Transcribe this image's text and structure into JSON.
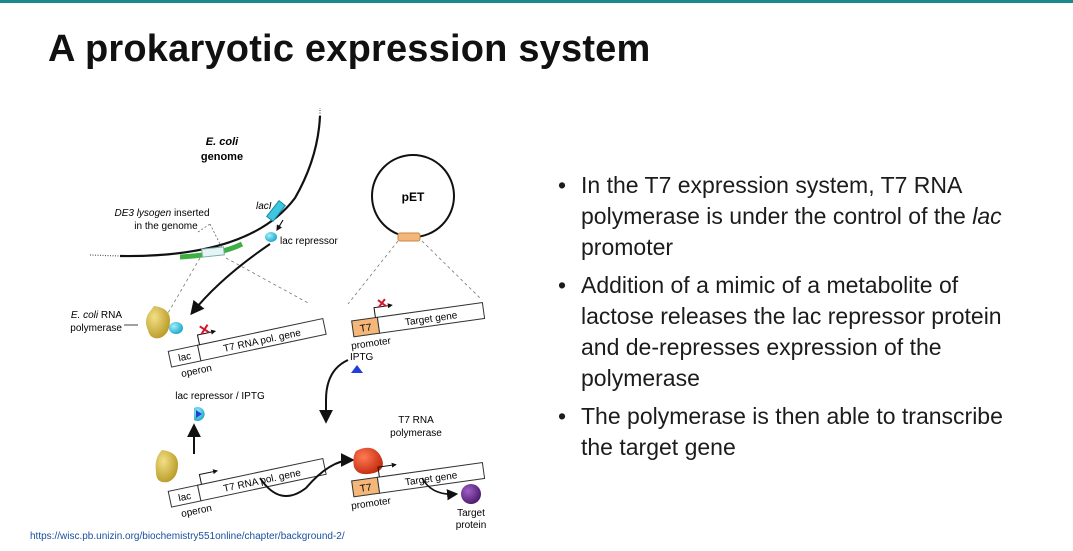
{
  "slide": {
    "title": "A prokaryotic expression system",
    "source_link": "https://wisc.pb.unizin.org/biochemistry551online/chapter/background-2/"
  },
  "diagram": {
    "ecoli_genome_line1": "E. coli",
    "ecoli_genome_line2": "genome",
    "de3_line1": "DE3 lysogen inserted",
    "de3_line2": "in the genome",
    "lacI": "lacI",
    "lac_repressor": "lac repressor",
    "pet": "pET",
    "ecoli_rnap_line1": "E. coli RNA",
    "ecoli_rnap_line2": "polymerase",
    "t7_rna_pol_gene": "T7 RNA pol. gene",
    "lac": "lac",
    "operon": "operon",
    "t7": "T7",
    "promoter": "promoter",
    "target_gene": "Target gene",
    "iptg": "IPTG",
    "lac_repressor_iptg": "lac repressor / IPTG",
    "t7_rnap_line1": "T7 RNA",
    "t7_rnap_line2": "polymerase",
    "target_protein_line1": "Target",
    "target_protein_line2": "protein"
  },
  "bullets": [
    {
      "pre": "In the T7 expression system, T7 RNA polymerase is under the control of the ",
      "italic": "lac",
      "post": " promoter"
    },
    {
      "text": "Addition of a mimic of a metabolite of lactose releases the lac repressor protein and de-represses expression of the polymerase"
    },
    {
      "text": "The polymerase is then able to transcribe the target gene"
    }
  ],
  "colors": {
    "accent_bar": "#1a8a8f",
    "lac_repressor": "#3cc6e0",
    "genome_insert": "#3cb043",
    "t7_promoter": "#f5b779",
    "ecoli_rnap": "#d9c14a",
    "t7_rnap": "#e8411f",
    "target_protein": "#6b2d8f",
    "iptg": "#1f3fd6",
    "inhibit_x": "#d0192b"
  }
}
